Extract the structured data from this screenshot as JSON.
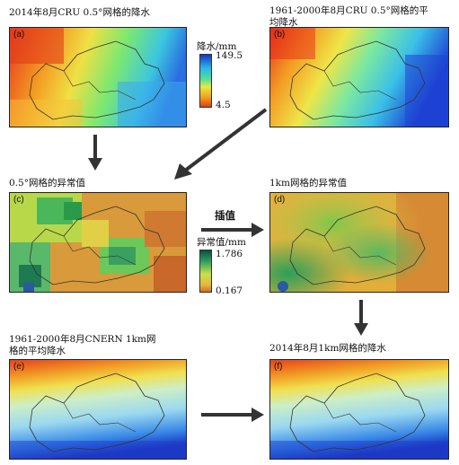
{
  "panels": {
    "a": {
      "caption": "2014年8月CRU 0.5°网格的降水",
      "label": "(a)"
    },
    "b": {
      "caption": "1961-2000年8月CRU 0.5°网格的平\n均降水",
      "label": "(b)"
    },
    "c": {
      "caption": "0.5°网格的异常值",
      "label": "(c)"
    },
    "d": {
      "caption": "1km网格的异常值",
      "label": "(d)"
    },
    "e": {
      "caption": "1961-2000年8月CNERN 1km网\n格的平均降水",
      "label": "(e)"
    },
    "f": {
      "caption": "2014年8月1km网格的降水",
      "label": "(f)"
    }
  },
  "legend_precip": {
    "title": "降水/mm",
    "max": "149.5",
    "min": "4.5"
  },
  "legend_anomaly": {
    "title": "异常值/mm",
    "max": "1.786",
    "min": "0.167"
  },
  "interp_label": "插值",
  "colors": {
    "precip_high": "#1a3fd6",
    "precip_mid": "#3fe0c8",
    "precip_low": "#e8311a",
    "anomaly_high": "#0e5a2e",
    "anomaly_mid": "#cfe24a",
    "anomaly_low": "#c8662c"
  }
}
